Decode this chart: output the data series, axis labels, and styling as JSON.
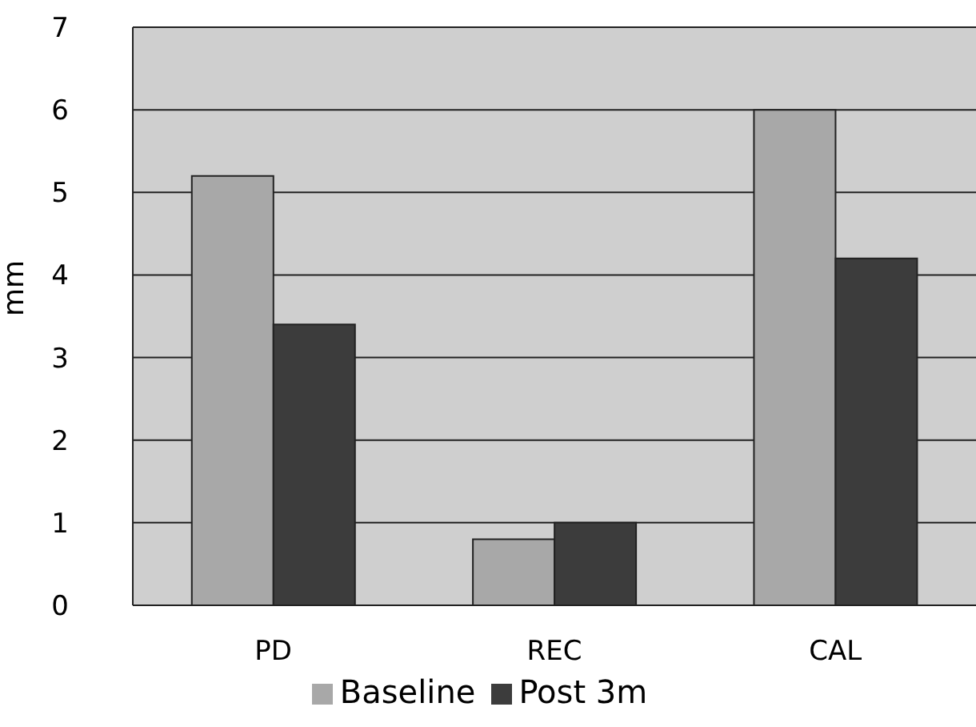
{
  "chart_data": {
    "type": "bar",
    "ylabel": "mm",
    "categories": [
      "PD",
      "REC",
      "CAL"
    ],
    "series": [
      {
        "name": "Baseline",
        "color": "#a8a8a8",
        "values": [
          5.2,
          0.8,
          6.0
        ]
      },
      {
        "name": "Post 3m",
        "color": "#3c3c3c",
        "values": [
          3.4,
          1.0,
          4.2
        ]
      }
    ],
    "ylim": [
      0,
      7
    ],
    "yticks": [
      0,
      1,
      2,
      3,
      4,
      5,
      6,
      7
    ],
    "grid": "y",
    "legend": "bottom"
  }
}
